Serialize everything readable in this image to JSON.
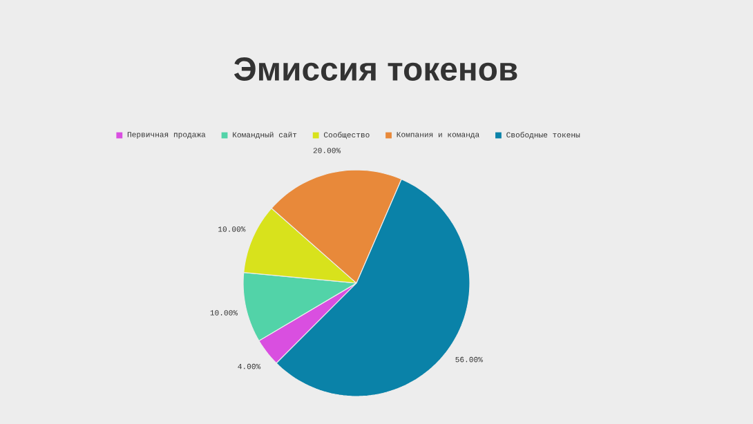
{
  "chart_data": {
    "type": "pie",
    "title": "Эмиссия токенов",
    "categories": [
      "Первичная продажа",
      "Командный сайт",
      "Сообщество",
      "Компания и команда",
      "Свободные токены"
    ],
    "values": [
      4,
      10,
      10,
      20,
      56
    ],
    "value_labels": [
      "4.00%",
      "10.00%",
      "10.00%",
      "20.00%",
      "56.00%"
    ],
    "colors": [
      "#d94fe0",
      "#52d3a8",
      "#d8e21c",
      "#e8893a",
      "#0a82a8"
    ],
    "legend": "top"
  }
}
